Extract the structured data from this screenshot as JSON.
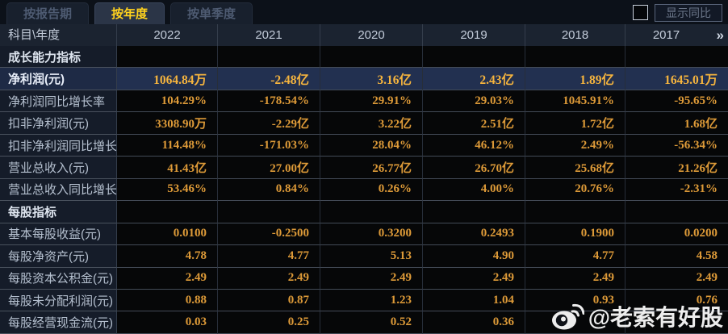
{
  "tabs": [
    {
      "label": "按报告期",
      "active": false
    },
    {
      "label": "按年度",
      "active": true
    },
    {
      "label": "按单季度",
      "active": false
    }
  ],
  "controls": {
    "yoy_checkbox_checked": false,
    "yoy_label": "显示同比"
  },
  "table": {
    "corner_label": "科目\\年度",
    "years": [
      "2022",
      "2021",
      "2020",
      "2019",
      "2018",
      "2017"
    ],
    "more_icon": "»",
    "rows": [
      {
        "type": "section",
        "label": "成长能力指标",
        "highlight": false,
        "values": [
          "",
          "",
          "",
          "",
          "",
          ""
        ]
      },
      {
        "type": "data",
        "label": "净利润(元)",
        "highlight": true,
        "values": [
          "1064.84万",
          "-2.48亿",
          "3.16亿",
          "2.43亿",
          "1.89亿",
          "1645.01万"
        ]
      },
      {
        "type": "data",
        "label": "净利润同比增长率",
        "highlight": false,
        "values": [
          "104.29%",
          "-178.54%",
          "29.91%",
          "29.03%",
          "1045.91%",
          "-95.65%"
        ]
      },
      {
        "type": "data",
        "label": "扣非净利润(元)",
        "highlight": false,
        "values": [
          "3308.90万",
          "-2.29亿",
          "3.22亿",
          "2.51亿",
          "1.72亿",
          "1.68亿"
        ]
      },
      {
        "type": "data",
        "label": "扣非净利润同比增长率",
        "highlight": false,
        "values": [
          "114.48%",
          "-171.03%",
          "28.04%",
          "46.12%",
          "2.49%",
          "-56.34%"
        ]
      },
      {
        "type": "data",
        "label": "营业总收入(元)",
        "highlight": false,
        "values": [
          "41.43亿",
          "27.00亿",
          "26.77亿",
          "26.70亿",
          "25.68亿",
          "21.26亿"
        ]
      },
      {
        "type": "data",
        "label": "营业总收入同比增长率",
        "highlight": false,
        "values": [
          "53.46%",
          "0.84%",
          "0.26%",
          "4.00%",
          "20.76%",
          "-2.31%"
        ]
      },
      {
        "type": "section",
        "label": "每股指标",
        "highlight": false,
        "values": [
          "",
          "",
          "",
          "",
          "",
          ""
        ]
      },
      {
        "type": "data",
        "label": "基本每股收益(元)",
        "highlight": false,
        "values": [
          "0.0100",
          "-0.2500",
          "0.3200",
          "0.2493",
          "0.1900",
          "0.0200"
        ]
      },
      {
        "type": "data",
        "label": "每股净资产(元)",
        "highlight": false,
        "values": [
          "4.78",
          "4.77",
          "5.13",
          "4.90",
          "4.77",
          "4.58"
        ]
      },
      {
        "type": "data",
        "label": "每股资本公积金(元)",
        "highlight": false,
        "values": [
          "2.49",
          "2.49",
          "2.49",
          "2.49",
          "2.49",
          "2.49"
        ]
      },
      {
        "type": "data",
        "label": "每股未分配利润(元)",
        "highlight": false,
        "values": [
          "0.88",
          "0.87",
          "1.23",
          "1.04",
          "0.93",
          "0.76"
        ]
      },
      {
        "type": "data",
        "label": "每股经营现金流(元)",
        "highlight": false,
        "values": [
          "0.03",
          "0.25",
          "0.52",
          "0.36",
          "",
          ""
        ]
      }
    ]
  },
  "watermark": {
    "text": "@老索有好股"
  },
  "colors": {
    "accent_gold": "#ffd21e",
    "value_orange": "#dd9a38",
    "highlight_row_bg": "#223050",
    "label_column_bg": "#151c29",
    "header_bg": "#1b2330"
  }
}
